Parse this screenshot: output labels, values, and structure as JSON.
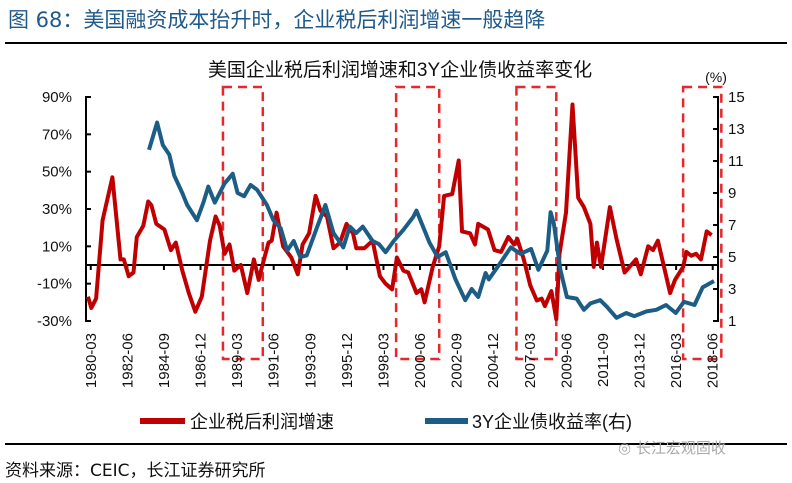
{
  "figure": {
    "title": "图 68：美国融资成本抬升时，企业税后利润增速一般趋降",
    "source": "资料来源：CEIC，长江证券研究所",
    "watermark": "长江宏观固收"
  },
  "chart_data": {
    "type": "line",
    "title": "美国企业税后利润增速和3Y企业债收益率变化",
    "right_axis_unit": "(%)",
    "x_tick_labels": [
      "1980-03",
      "1982-06",
      "1984-09",
      "1986-12",
      "1989-03",
      "1991-06",
      "1993-09",
      "1995-12",
      "1998-03",
      "2000-06",
      "2002-09",
      "2004-12",
      "2007-03",
      "2009-06",
      "2011-09",
      "2013-12",
      "2016-03",
      "2018-06"
    ],
    "x_tick_years": [
      1980.17,
      1982.42,
      1984.67,
      1986.92,
      1989.17,
      1991.42,
      1993.67,
      1995.92,
      1998.17,
      2000.42,
      2002.67,
      2004.92,
      2007.17,
      2009.42,
      2011.67,
      2013.92,
      2016.17,
      2018.42
    ],
    "left_axis": {
      "ylim": [
        -30,
        90
      ],
      "ticks": [
        "90%",
        "70%",
        "50%",
        "30%",
        "10%",
        "-10%",
        "-30%"
      ],
      "tick_values": [
        90,
        70,
        50,
        30,
        10,
        -10,
        -30
      ]
    },
    "right_axis": {
      "ylim": [
        1,
        15
      ],
      "ticks": [
        "15",
        "13",
        "11",
        "9",
        "7",
        "5",
        "3",
        "1"
      ],
      "tick_values": [
        15,
        13,
        11,
        9,
        7,
        5,
        3,
        1
      ]
    },
    "zero_line_left_value": 0,
    "grid": false,
    "legend_position": "bottom",
    "colors": {
      "profit": "#c00000",
      "yield": "#1c5d86",
      "highlight": "#e8262b"
    },
    "highlight_periods": [
      [
        1988.3,
        1990.75
      ],
      [
        1998.95,
        2001.6
      ],
      [
        2006.35,
        2008.8
      ],
      [
        2016.6,
        2018.95
      ]
    ],
    "series": [
      {
        "name": "企业税后利润增速",
        "axis": "left",
        "points": [
          [
            1980.0,
            -17
          ],
          [
            1980.2,
            -23
          ],
          [
            1980.5,
            -18
          ],
          [
            1980.9,
            24
          ],
          [
            1981.5,
            47
          ],
          [
            1982.0,
            3
          ],
          [
            1982.2,
            3
          ],
          [
            1982.5,
            -6
          ],
          [
            1982.8,
            -4
          ],
          [
            1983.0,
            15
          ],
          [
            1983.4,
            21
          ],
          [
            1983.7,
            34
          ],
          [
            1983.9,
            32
          ],
          [
            1984.2,
            22
          ],
          [
            1984.7,
            19
          ],
          [
            1985.1,
            8
          ],
          [
            1985.4,
            12
          ],
          [
            1985.8,
            -3
          ],
          [
            1986.2,
            -15
          ],
          [
            1986.6,
            -25
          ],
          [
            1987.0,
            -17
          ],
          [
            1987.5,
            13
          ],
          [
            1987.85,
            26
          ],
          [
            1988.1,
            21
          ],
          [
            1988.4,
            6
          ],
          [
            1988.7,
            11
          ],
          [
            1989.0,
            -3
          ],
          [
            1989.4,
            0
          ],
          [
            1989.8,
            -15
          ],
          [
            1990.2,
            3
          ],
          [
            1990.5,
            -8
          ],
          [
            1990.7,
            -1
          ],
          [
            1991.1,
            12
          ],
          [
            1991.3,
            13
          ],
          [
            1991.6,
            28
          ],
          [
            1992.0,
            10
          ],
          [
            1992.5,
            4
          ],
          [
            1992.9,
            -5
          ],
          [
            1993.2,
            11
          ],
          [
            1993.6,
            17
          ],
          [
            1994.0,
            37
          ],
          [
            1994.3,
            29
          ],
          [
            1994.7,
            26
          ],
          [
            1995.1,
            9
          ],
          [
            1995.5,
            12
          ],
          [
            1995.9,
            22
          ],
          [
            1996.3,
            17
          ],
          [
            1996.5,
            9
          ],
          [
            1997.0,
            9
          ],
          [
            1997.5,
            13
          ],
          [
            1997.95,
            -6
          ],
          [
            1998.3,
            -10
          ],
          [
            1998.7,
            -13
          ],
          [
            1999.0,
            4
          ],
          [
            1999.4,
            -3
          ],
          [
            1999.7,
            -4
          ],
          [
            2000.2,
            -15
          ],
          [
            2000.5,
            -13
          ],
          [
            2000.7,
            -20
          ],
          [
            2001.2,
            -1
          ],
          [
            2001.6,
            10
          ],
          [
            2001.9,
            37
          ],
          [
            2002.4,
            38
          ],
          [
            2002.8,
            56
          ],
          [
            2003.0,
            18
          ],
          [
            2003.5,
            17
          ],
          [
            2003.8,
            11
          ],
          [
            2004.0,
            22
          ],
          [
            2004.6,
            19
          ],
          [
            2005.0,
            8
          ],
          [
            2005.4,
            7
          ],
          [
            2005.85,
            15
          ],
          [
            2006.2,
            11
          ],
          [
            2006.4,
            14
          ],
          [
            2006.8,
            3
          ],
          [
            2007.2,
            -11
          ],
          [
            2007.6,
            -19
          ],
          [
            2007.9,
            -18
          ],
          [
            2008.1,
            -22
          ],
          [
            2008.5,
            -14
          ],
          [
            2008.8,
            -29
          ],
          [
            2009.0,
            6
          ],
          [
            2009.4,
            28
          ],
          [
            2009.8,
            86
          ],
          [
            2010.15,
            36
          ],
          [
            2010.5,
            31
          ],
          [
            2010.9,
            22
          ],
          [
            2011.1,
            -1
          ],
          [
            2011.3,
            12
          ],
          [
            2011.55,
            -1
          ],
          [
            2012.1,
            31
          ],
          [
            2012.5,
            14
          ],
          [
            2013.0,
            -4
          ],
          [
            2013.7,
            3
          ],
          [
            2014.0,
            -5
          ],
          [
            2014.45,
            10
          ],
          [
            2014.75,
            8
          ],
          [
            2015.05,
            13
          ],
          [
            2015.8,
            -15
          ],
          [
            2016.1,
            -8
          ],
          [
            2016.6,
            -1
          ],
          [
            2016.8,
            7
          ],
          [
            2017.1,
            5
          ],
          [
            2017.4,
            6
          ],
          [
            2017.7,
            3
          ],
          [
            2018.05,
            18
          ],
          [
            2018.35,
            16
          ]
        ]
      },
      {
        "name": "3Y企业债收益率(右)",
        "axis": "right",
        "points": [
          [
            1983.75,
            11.7
          ],
          [
            1984.25,
            13.4
          ],
          [
            1984.6,
            12.0
          ],
          [
            1985.0,
            11.4
          ],
          [
            1985.3,
            10.1
          ],
          [
            1985.8,
            9.0
          ],
          [
            1986.1,
            8.25
          ],
          [
            1986.7,
            7.3
          ],
          [
            1987.1,
            8.4
          ],
          [
            1987.4,
            9.4
          ],
          [
            1987.8,
            8.4
          ],
          [
            1988.4,
            9.6
          ],
          [
            1988.9,
            10.2
          ],
          [
            1989.2,
            9.0
          ],
          [
            1989.6,
            8.8
          ],
          [
            1990.0,
            9.5
          ],
          [
            1990.4,
            9.2
          ],
          [
            1991.0,
            8.25
          ],
          [
            1991.4,
            7.3
          ],
          [
            1991.85,
            6.8
          ],
          [
            1992.25,
            5.4
          ],
          [
            1992.65,
            6.0
          ],
          [
            1993.05,
            5.0
          ],
          [
            1993.45,
            5.1
          ],
          [
            1994.1,
            6.9
          ],
          [
            1994.6,
            8.25
          ],
          [
            1995.1,
            6.5
          ],
          [
            1995.7,
            5.6
          ],
          [
            1996.1,
            6.9
          ],
          [
            1996.5,
            6.5
          ],
          [
            1996.9,
            6.9
          ],
          [
            1997.5,
            6.0
          ],
          [
            1997.9,
            5.8
          ],
          [
            1998.3,
            5.3
          ],
          [
            1998.8,
            6.0
          ],
          [
            1999.4,
            6.7
          ],
          [
            2000.0,
            7.5
          ],
          [
            2000.2,
            7.9
          ],
          [
            2001.0,
            5.9
          ],
          [
            2001.5,
            5.0
          ],
          [
            2002.0,
            5.3
          ],
          [
            2002.6,
            3.6
          ],
          [
            2003.2,
            2.3
          ],
          [
            2003.6,
            3.0
          ],
          [
            2004.0,
            2.5
          ],
          [
            2004.45,
            4.0
          ],
          [
            2004.65,
            3.6
          ],
          [
            2005.2,
            4.4
          ],
          [
            2006.0,
            5.6
          ],
          [
            2006.6,
            5.2
          ],
          [
            2007.25,
            5.5
          ],
          [
            2007.7,
            4.2
          ],
          [
            2008.25,
            5.4
          ],
          [
            2008.45,
            7.8
          ],
          [
            2008.65,
            7.1
          ],
          [
            2009.05,
            4.2
          ],
          [
            2009.45,
            2.5
          ],
          [
            2010.05,
            2.4
          ],
          [
            2010.5,
            1.7
          ],
          [
            2010.9,
            2.1
          ],
          [
            2011.5,
            2.3
          ],
          [
            2011.9,
            1.9
          ],
          [
            2012.5,
            1.2
          ],
          [
            2013.1,
            1.5
          ],
          [
            2013.6,
            1.3
          ],
          [
            2014.35,
            1.6
          ],
          [
            2014.95,
            1.7
          ],
          [
            2015.55,
            2.0
          ],
          [
            2016.15,
            1.5
          ],
          [
            2016.65,
            2.2
          ],
          [
            2017.3,
            2.0
          ],
          [
            2017.8,
            3.1
          ],
          [
            2018.5,
            3.5
          ]
        ]
      }
    ]
  }
}
